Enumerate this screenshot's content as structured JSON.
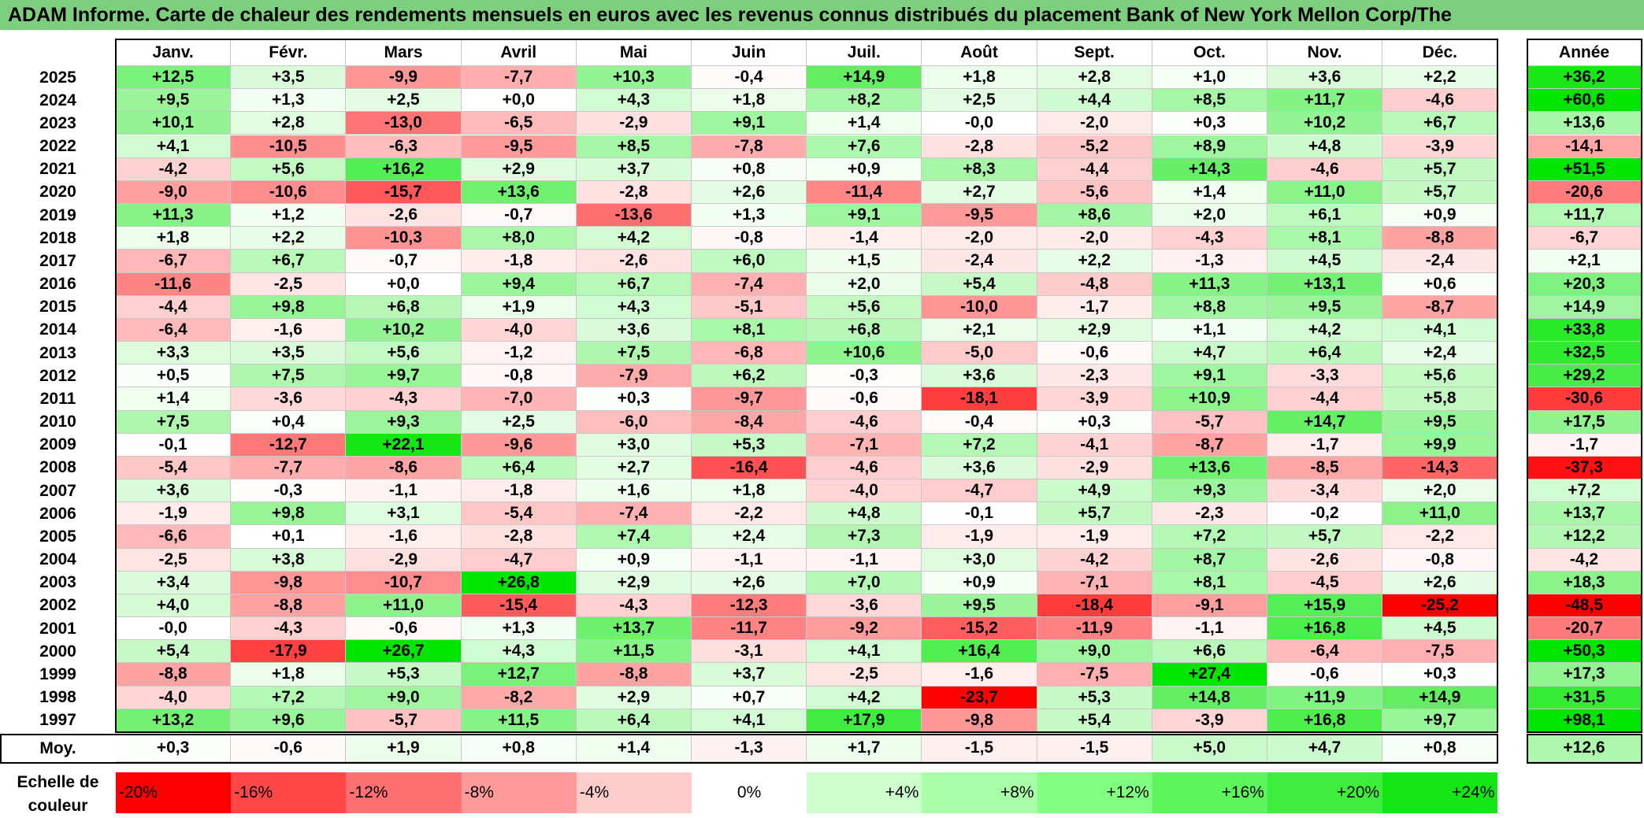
{
  "title": "ADAM Informe. Carte de chaleur des rendements mensuels en euros avec les revenus connus distribués du placement Bank of New York Mellon Corp/The",
  "chart_data": {
    "type": "heatmap",
    "title": "ADAM Informe. Carte de chaleur des rendements mensuels en euros avec les revenus connus distribués du placement Bank of New York Mellon Corp/The",
    "months": [
      "Janv.",
      "Févr.",
      "Mars",
      "Avril",
      "Mai",
      "Juin",
      "Juil.",
      "Août",
      "Sept.",
      "Oct.",
      "Nov.",
      "Déc."
    ],
    "annual_header": "Année",
    "rows": [
      {
        "year": "2025",
        "values": [
          "+12,5",
          "+3,5",
          "-9,9",
          "-7,7",
          "+10,3",
          "-0,4",
          "+14,9",
          "+1,8",
          "+2,8",
          "+1,0",
          "+3,6",
          "+2,2"
        ],
        "annual": "+36,2"
      },
      {
        "year": "2024",
        "values": [
          "+9,5",
          "+1,3",
          "+2,5",
          "+0,0",
          "+4,3",
          "+1,8",
          "+8,2",
          "+2,5",
          "+4,4",
          "+8,5",
          "+11,7",
          "-4,6"
        ],
        "annual": "+60,6"
      },
      {
        "year": "2023",
        "values": [
          "+10,1",
          "+2,8",
          "-13,0",
          "-6,5",
          "-2,9",
          "+9,1",
          "+1,4",
          "-0,0",
          "-2,0",
          "+0,3",
          "+10,2",
          "+6,7"
        ],
        "annual": "+13,6"
      },
      {
        "year": "2022",
        "values": [
          "+4,1",
          "-10,5",
          "-6,3",
          "-9,5",
          "+8,5",
          "-7,8",
          "+7,6",
          "-2,8",
          "-5,2",
          "+8,9",
          "+4,8",
          "-3,9"
        ],
        "annual": "-14,1"
      },
      {
        "year": "2021",
        "values": [
          "-4,2",
          "+5,6",
          "+16,2",
          "+2,9",
          "+3,7",
          "+0,8",
          "+0,9",
          "+8,3",
          "-4,4",
          "+14,3",
          "-4,6",
          "+5,7"
        ],
        "annual": "+51,5"
      },
      {
        "year": "2020",
        "values": [
          "-9,0",
          "-10,6",
          "-15,7",
          "+13,6",
          "-2,8",
          "+2,6",
          "-11,4",
          "+2,7",
          "-5,6",
          "+1,4",
          "+11,0",
          "+5,7"
        ],
        "annual": "-20,6"
      },
      {
        "year": "2019",
        "values": [
          "+11,3",
          "+1,2",
          "-2,6",
          "-0,7",
          "-13,6",
          "+1,3",
          "+9,1",
          "-9,5",
          "+8,6",
          "+2,0",
          "+6,1",
          "+0,9"
        ],
        "annual": "+11,7"
      },
      {
        "year": "2018",
        "values": [
          "+1,8",
          "+2,2",
          "-10,3",
          "+8,0",
          "+4,2",
          "-0,8",
          "-1,4",
          "-2,0",
          "-2,0",
          "-4,3",
          "+8,1",
          "-8,8"
        ],
        "annual": "-6,7"
      },
      {
        "year": "2017",
        "values": [
          "-6,7",
          "+6,7",
          "-0,7",
          "-1,8",
          "-2,6",
          "+6,0",
          "+1,5",
          "-2,4",
          "+2,2",
          "-1,3",
          "+4,5",
          "-2,4"
        ],
        "annual": "+2,1"
      },
      {
        "year": "2016",
        "values": [
          "-11,6",
          "-2,5",
          "+0,0",
          "+9,4",
          "+6,7",
          "-7,4",
          "+2,0",
          "+5,4",
          "-4,8",
          "+11,3",
          "+13,1",
          "+0,6"
        ],
        "annual": "+20,3"
      },
      {
        "year": "2015",
        "values": [
          "-4,4",
          "+9,8",
          "+6,8",
          "+1,9",
          "+4,3",
          "-5,1",
          "+5,6",
          "-10,0",
          "-1,7",
          "+8,8",
          "+9,5",
          "-8,7"
        ],
        "annual": "+14,9"
      },
      {
        "year": "2014",
        "values": [
          "-6,4",
          "-1,6",
          "+10,2",
          "-4,0",
          "+3,6",
          "+8,1",
          "+6,8",
          "+2,1",
          "+2,9",
          "+1,1",
          "+4,2",
          "+4,1"
        ],
        "annual": "+33,8"
      },
      {
        "year": "2013",
        "values": [
          "+3,3",
          "+3,5",
          "+5,6",
          "-1,2",
          "+7,5",
          "-6,8",
          "+10,6",
          "-5,0",
          "-0,6",
          "+4,7",
          "+6,4",
          "+2,4"
        ],
        "annual": "+32,5"
      },
      {
        "year": "2012",
        "values": [
          "+0,5",
          "+7,5",
          "+9,7",
          "-0,8",
          "-7,9",
          "+6,2",
          "-0,3",
          "+3,6",
          "-2,3",
          "+9,1",
          "-3,3",
          "+5,6"
        ],
        "annual": "+29,2"
      },
      {
        "year": "2011",
        "values": [
          "+1,4",
          "-3,6",
          "-4,3",
          "-7,0",
          "+0,3",
          "-9,7",
          "-0,6",
          "-18,1",
          "-3,9",
          "+10,9",
          "-4,4",
          "+5,8"
        ],
        "annual": "-30,6"
      },
      {
        "year": "2010",
        "values": [
          "+7,5",
          "+0,4",
          "+9,3",
          "+2,5",
          "-6,0",
          "-8,4",
          "-4,6",
          "-0,4",
          "+0,3",
          "-5,7",
          "+14,7",
          "+9,5"
        ],
        "annual": "+17,5"
      },
      {
        "year": "2009",
        "values": [
          "-0,1",
          "-12,7",
          "+22,1",
          "-9,6",
          "+3,0",
          "+5,3",
          "-7,1",
          "+7,2",
          "-4,1",
          "-8,7",
          "-1,7",
          "+9,9"
        ],
        "annual": "-1,7"
      },
      {
        "year": "2008",
        "values": [
          "-5,4",
          "-7,7",
          "-8,6",
          "+6,4",
          "+2,7",
          "-16,4",
          "-4,6",
          "+3,6",
          "-2,9",
          "+13,6",
          "-8,5",
          "-14,3"
        ],
        "annual": "-37,3"
      },
      {
        "year": "2007",
        "values": [
          "+3,6",
          "-0,3",
          "-1,1",
          "-1,8",
          "+1,6",
          "+1,8",
          "-4,0",
          "-4,7",
          "+4,9",
          "+9,3",
          "-3,4",
          "+2,0"
        ],
        "annual": "+7,2"
      },
      {
        "year": "2006",
        "values": [
          "-1,9",
          "+9,8",
          "+3,1",
          "-5,4",
          "-7,4",
          "-2,2",
          "+4,8",
          "-0,1",
          "+5,7",
          "-2,3",
          "-0,2",
          "+11,0"
        ],
        "annual": "+13,7"
      },
      {
        "year": "2005",
        "values": [
          "-6,6",
          "+0,1",
          "-1,6",
          "-2,8",
          "+7,4",
          "+2,4",
          "+7,3",
          "-1,9",
          "-1,9",
          "+7,2",
          "+5,7",
          "-2,2"
        ],
        "annual": "+12,2"
      },
      {
        "year": "2004",
        "values": [
          "-2,5",
          "+3,8",
          "-2,9",
          "-4,7",
          "+0,9",
          "-1,1",
          "-1,1",
          "+3,0",
          "-4,2",
          "+8,7",
          "-2,6",
          "-0,8"
        ],
        "annual": "-4,2"
      },
      {
        "year": "2003",
        "values": [
          "+3,4",
          "-9,8",
          "-10,7",
          "+26,8",
          "+2,9",
          "+2,6",
          "+7,0",
          "+0,9",
          "-7,1",
          "+8,1",
          "-4,5",
          "+2,6"
        ],
        "annual": "+18,3"
      },
      {
        "year": "2002",
        "values": [
          "+4,0",
          "-8,8",
          "+11,0",
          "-15,4",
          "-4,3",
          "-12,3",
          "-3,6",
          "+9,5",
          "-18,4",
          "-9,1",
          "+15,9",
          "-25,2"
        ],
        "annual": "-48,5"
      },
      {
        "year": "2001",
        "values": [
          "-0,0",
          "-4,3",
          "-0,6",
          "+1,3",
          "+13,7",
          "-11,7",
          "-9,2",
          "-15,2",
          "-11,9",
          "-1,1",
          "+16,8",
          "+4,5"
        ],
        "annual": "-20,7"
      },
      {
        "year": "2000",
        "values": [
          "+5,4",
          "-17,9",
          "+26,7",
          "+4,3",
          "+11,5",
          "-3,1",
          "+4,1",
          "+16,4",
          "+9,0",
          "+6,6",
          "-6,4",
          "-7,5"
        ],
        "annual": "+50,3"
      },
      {
        "year": "1999",
        "values": [
          "-8,8",
          "+1,8",
          "+5,3",
          "+12,7",
          "-8,8",
          "+3,7",
          "-2,5",
          "-1,6",
          "-7,5",
          "+27,4",
          "-0,6",
          "+0,3"
        ],
        "annual": "+17,3"
      },
      {
        "year": "1998",
        "values": [
          "-4,0",
          "+7,2",
          "+9,0",
          "-8,2",
          "+2,9",
          "+0,7",
          "+4,2",
          "-23,7",
          "+5,3",
          "+14,8",
          "+11,9",
          "+14,9"
        ],
        "annual": "+31,5"
      },
      {
        "year": "1997",
        "values": [
          "+13,2",
          "+9,6",
          "-5,7",
          "+11,5",
          "+6,4",
          "+4,1",
          "+17,9",
          "-9,8",
          "+5,4",
          "-3,9",
          "+16,8",
          "+9,7"
        ],
        "annual": "+98,1"
      }
    ],
    "average": {
      "label": "Moy.",
      "values": [
        "+0,3",
        "-0,6",
        "+1,9",
        "+0,8",
        "+1,4",
        "-1,3",
        "+1,7",
        "-1,5",
        "-1,5",
        "+5,0",
        "+4,7",
        "+0,8"
      ],
      "annual": "+12,6"
    },
    "color_scale": {
      "label": "Echelle de couleur",
      "stops": [
        "-20%",
        "-16%",
        "-12%",
        "-8%",
        "-4%",
        "0%",
        "+4%",
        "+8%",
        "+12%",
        "+16%",
        "+20%",
        "+24%"
      ],
      "colors": [
        "#ff0000",
        "#ff4747",
        "#ff7070",
        "#ff9a9a",
        "#ffcccc",
        "#ffffff",
        "#ccffcc",
        "#a8ffa8",
        "#80ff80",
        "#5cf55c",
        "#3dee3d",
        "#14e614"
      ]
    }
  }
}
